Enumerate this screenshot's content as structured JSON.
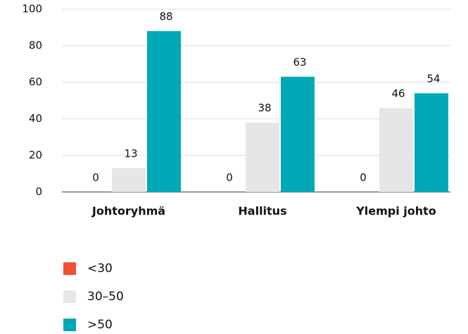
{
  "chart_data": {
    "type": "bar",
    "categories": [
      "Johtoryhmä",
      "Hallitus",
      "Ylempi johto"
    ],
    "series": [
      {
        "name": "<30",
        "color": "#f04e37",
        "values": [
          0,
          0,
          0
        ]
      },
      {
        "name": "30–50",
        "color": "#e6e6e8",
        "values": [
          13,
          38,
          46
        ]
      },
      {
        "name": ">50",
        "color": "#00a9b5",
        "values": [
          88,
          63,
          54
        ]
      }
    ],
    "ylim": [
      0,
      100
    ],
    "yticks": [
      0,
      20,
      40,
      60,
      80,
      100
    ],
    "grid": true,
    "legend": "bottom-left"
  }
}
